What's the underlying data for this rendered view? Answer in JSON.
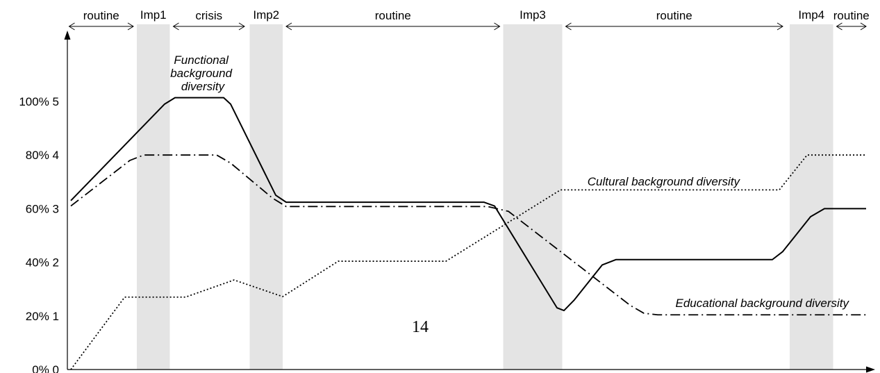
{
  "chart_data": {
    "type": "line",
    "title": "",
    "xlabel": "",
    "ylabel": "",
    "ylim": [
      0,
      5
    ],
    "y_ticks": [
      {
        "value": 0,
        "label": "0% 0"
      },
      {
        "value": 1,
        "label": "20% 1"
      },
      {
        "value": 2,
        "label": "40% 2"
      },
      {
        "value": 3,
        "label": "60% 3"
      },
      {
        "value": 4,
        "label": "80% 4"
      },
      {
        "value": 5,
        "label": "100% 5"
      }
    ],
    "grid": false,
    "phases": [
      {
        "label": "routine",
        "type": "routine",
        "start": 0.05,
        "end": 1.9
      },
      {
        "label": "Imp1",
        "type": "imp",
        "start": 2.0,
        "end": 2.95
      },
      {
        "label": "crisis",
        "type": "routine",
        "start": 3.05,
        "end": 5.1
      },
      {
        "label": "Imp2",
        "type": "imp",
        "start": 5.25,
        "end": 6.2
      },
      {
        "label": "routine",
        "type": "routine",
        "start": 6.3,
        "end": 12.45
      },
      {
        "label": "Imp3",
        "type": "imp",
        "start": 12.55,
        "end": 14.25
      },
      {
        "label": "routine",
        "type": "routine",
        "start": 14.35,
        "end": 20.6
      },
      {
        "label": "Imp4",
        "type": "imp",
        "start": 20.8,
        "end": 22.05
      },
      {
        "label": "routine",
        "type": "routine",
        "start": 22.15,
        "end": 23.0
      }
    ],
    "series": [
      {
        "name": "Functional background diversity",
        "label_lines": [
          "Functional",
          "background",
          "diversity"
        ],
        "style": "solid",
        "points": [
          [
            0.1,
            3.15
          ],
          [
            2.8,
            4.95
          ],
          [
            3.1,
            5.07
          ],
          [
            4.5,
            5.07
          ],
          [
            4.7,
            4.95
          ],
          [
            6.0,
            3.25
          ],
          [
            6.3,
            3.12
          ],
          [
            12.0,
            3.12
          ],
          [
            12.3,
            3.05
          ],
          [
            14.1,
            1.15
          ],
          [
            14.3,
            1.1
          ],
          [
            14.6,
            1.3
          ],
          [
            15.4,
            1.95
          ],
          [
            15.8,
            2.05
          ],
          [
            20.3,
            2.05
          ],
          [
            20.6,
            2.2
          ],
          [
            21.4,
            2.85
          ],
          [
            21.8,
            3.0
          ],
          [
            23.0,
            3.0
          ]
        ]
      },
      {
        "name": "Educational background diversity",
        "style": "dashdot",
        "points": [
          [
            0.1,
            3.05
          ],
          [
            1.8,
            3.9
          ],
          [
            2.2,
            4.0
          ],
          [
            4.3,
            4.0
          ],
          [
            4.7,
            3.85
          ],
          [
            5.9,
            3.2
          ],
          [
            6.3,
            3.04
          ],
          [
            12.1,
            3.04
          ],
          [
            12.7,
            2.95
          ],
          [
            16.2,
            1.2
          ],
          [
            16.6,
            1.05
          ],
          [
            17.0,
            1.02
          ],
          [
            23.0,
            1.02
          ]
        ]
      },
      {
        "name": "Cultural background diversity",
        "style": "dotted",
        "points": [
          [
            0.1,
            0.0
          ],
          [
            1.65,
            1.35
          ],
          [
            3.4,
            1.35
          ],
          [
            4.8,
            1.67
          ],
          [
            6.2,
            1.36
          ],
          [
            7.8,
            2.02
          ],
          [
            10.9,
            2.02
          ],
          [
            14.2,
            3.35
          ],
          [
            20.5,
            3.35
          ],
          [
            21.3,
            4.0
          ],
          [
            23.0,
            4.0
          ]
        ]
      }
    ],
    "annotations": [
      {
        "text": "14",
        "x": 11.0,
        "y": 1.0
      }
    ]
  }
}
